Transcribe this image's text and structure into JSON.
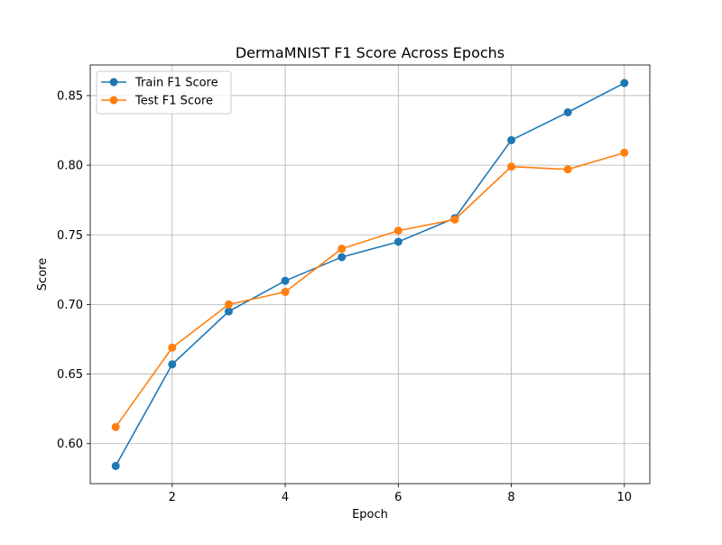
{
  "chart_data": {
    "type": "line",
    "title": "DermaMNIST F1 Score Across Epochs",
    "xlabel": "Epoch",
    "ylabel": "Score",
    "xlim": [
      0.55,
      10.45
    ],
    "ylim": [
      0.5713,
      0.872
    ],
    "x_ticks": [
      2,
      4,
      6,
      8,
      10
    ],
    "y_ticks": [
      0.6,
      0.65,
      0.7,
      0.75,
      0.8,
      0.85
    ],
    "grid": true,
    "legend_position": "upper left",
    "x": [
      1,
      2,
      3,
      4,
      5,
      6,
      7,
      8,
      9,
      10
    ],
    "series": [
      {
        "name": "Train F1 Score",
        "color": "#1f77b4",
        "marker": "circle",
        "values": [
          0.584,
          0.657,
          0.695,
          0.717,
          0.734,
          0.745,
          0.762,
          0.818,
          0.838,
          0.859
        ]
      },
      {
        "name": "Test F1 Score",
        "color": "#ff7f0e",
        "marker": "circle",
        "values": [
          0.612,
          0.669,
          0.7,
          0.709,
          0.74,
          0.753,
          0.761,
          0.799,
          0.797,
          0.809
        ]
      }
    ]
  }
}
